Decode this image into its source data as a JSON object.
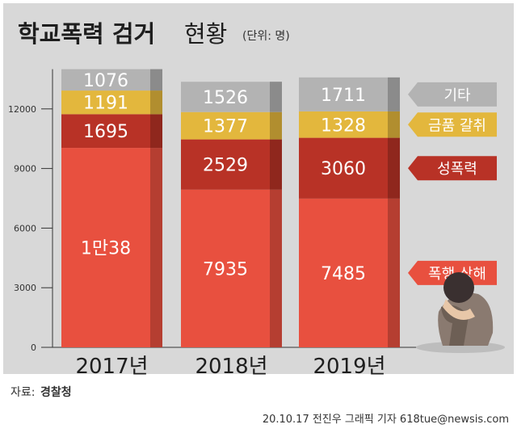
{
  "chart_data": {
    "type": "bar",
    "stacked": true,
    "title": "학교폭력 검거",
    "title_suffix": "현황",
    "unit": "(단위: 명)",
    "categories": [
      "2017년",
      "2018년",
      "2019년"
    ],
    "series": [
      {
        "name": "폭행·상해",
        "values": [
          10038,
          7935,
          7485
        ],
        "labels": [
          "1만38",
          "7935",
          "7485"
        ],
        "color": "#e8503f"
      },
      {
        "name": "성폭력",
        "values": [
          1695,
          2529,
          3060
        ],
        "labels": [
          "1695",
          "2529",
          "3060"
        ],
        "color": "#b83226"
      },
      {
        "name": "금품 갈취",
        "values": [
          1191,
          1377,
          1328
        ],
        "labels": [
          "1191",
          "1377",
          "1328"
        ],
        "color": "#e3b73d"
      },
      {
        "name": "기타",
        "values": [
          1076,
          1526,
          1711
        ],
        "labels": [
          "1076",
          "1526",
          "1711"
        ],
        "color": "#b3b3b3"
      }
    ],
    "yticks": [
      0,
      3000,
      6000,
      9000,
      12000
    ],
    "ylim": [
      0,
      14500
    ],
    "legend_position": "right",
    "grid": false
  },
  "source": {
    "label": "자료:",
    "value": "경찰청"
  },
  "credit": "20.10.17 전진우 그래픽 기자 618tue@newsis.com",
  "colors": {
    "background": "#d8d8d8",
    "border": "#ffffff",
    "side_shade": "#8a8a8a"
  }
}
